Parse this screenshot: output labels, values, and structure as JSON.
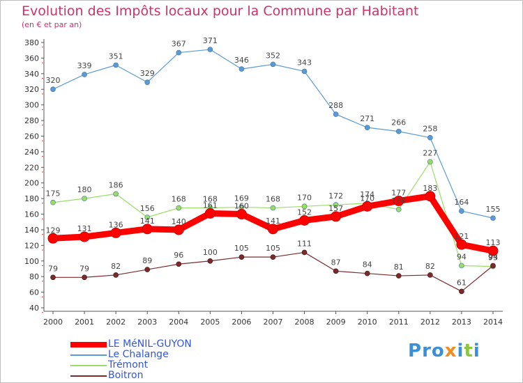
{
  "title": "Evolution des Impôts locaux pour la Commune par Habitant",
  "subtitle": "(en € et par an)",
  "logo": {
    "letters": [
      "P",
      "r",
      "o",
      "x",
      "i",
      "t",
      "i"
    ],
    "colors": [
      "#3b8fd6",
      "#3b8fd6",
      "#3b8fd6",
      "#f28c1c",
      "#3b8fd6",
      "#8cc63f",
      "#3b8fd6"
    ]
  },
  "chart_data": {
    "type": "line",
    "x": [
      "2000",
      "2001",
      "2002",
      "2003",
      "2004",
      "2005",
      "2006",
      "2007",
      "2008",
      "2009",
      "2010",
      "2011",
      "2012",
      "2013",
      "2014"
    ],
    "ylim": [
      40,
      380
    ],
    "yticks": [
      40,
      60,
      80,
      100,
      120,
      140,
      160,
      180,
      200,
      220,
      240,
      260,
      280,
      300,
      320,
      340,
      360,
      380
    ],
    "grid": false,
    "series": [
      {
        "name": "LE MéNIL-GUYON",
        "color": "#ff0000",
        "values": [
          129,
          131,
          136,
          141,
          140,
          161,
          160,
          141,
          152,
          157,
          170,
          177,
          183,
          121,
          113
        ]
      },
      {
        "name": "Le Chalange",
        "color": "#5b9bd5",
        "values": [
          320,
          339,
          351,
          329,
          367,
          371,
          346,
          352,
          343,
          288,
          271,
          266,
          258,
          164,
          155
        ]
      },
      {
        "name": "Trémont",
        "color": "#99dd66",
        "values": [
          175,
          180,
          186,
          156,
          168,
          168,
          169,
          168,
          170,
          172,
          174,
          166,
          227,
          94,
          93
        ]
      },
      {
        "name": "Boitron",
        "color": "#7a2a2a",
        "values": [
          79,
          79,
          82,
          89,
          96,
          100,
          105,
          105,
          111,
          87,
          84,
          81,
          82,
          61,
          94
        ]
      }
    ],
    "data_labels": [
      {
        "series": 0,
        "labels": [
          "129",
          "131",
          "136",
          "141",
          "140",
          "161",
          "160",
          "141",
          "152",
          "157",
          "170",
          "177",
          "183",
          "121",
          "113"
        ]
      },
      {
        "series": 1,
        "labels": [
          "320",
          "339",
          "351",
          "329",
          "367",
          "371",
          "346",
          "352",
          "343",
          "288",
          "271",
          "266",
          "258",
          "164",
          "155"
        ]
      },
      {
        "series": 2,
        "labels": [
          "175",
          "180",
          "186",
          "156",
          "168",
          "168",
          "169",
          "168",
          "170",
          "172",
          "174",
          "166",
          "227",
          "94",
          "93"
        ]
      },
      {
        "series": 3,
        "labels": [
          "79",
          "79",
          "82",
          "89",
          "96",
          "100",
          "105",
          "105",
          "111",
          "87",
          "84",
          "81",
          "82",
          "61",
          "94"
        ]
      }
    ]
  }
}
